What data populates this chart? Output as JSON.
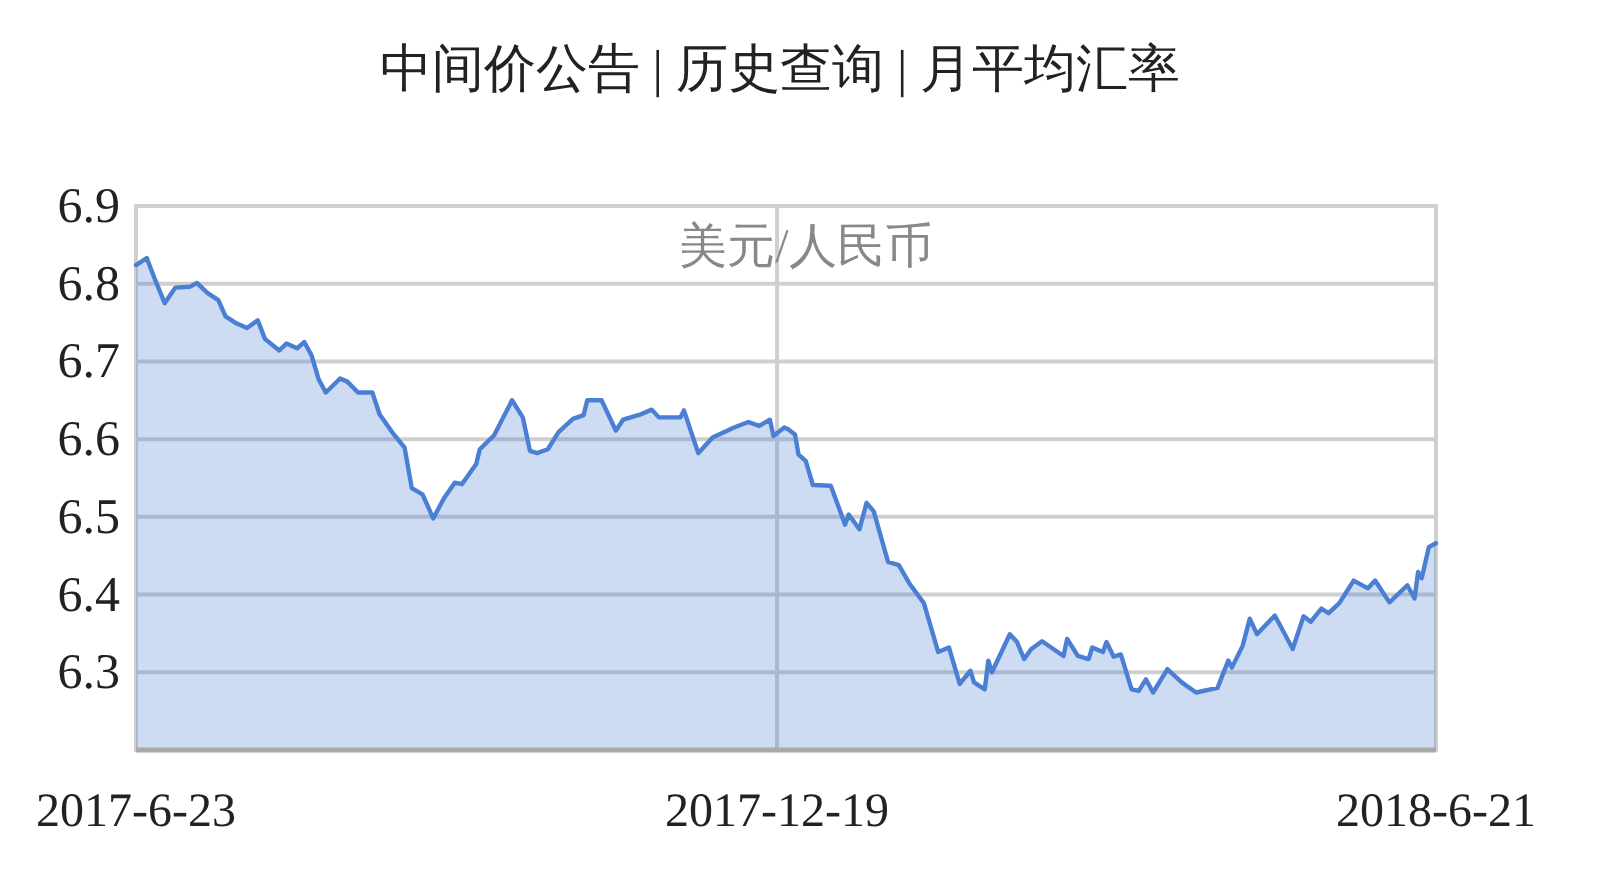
{
  "chart_data": {
    "type": "area",
    "title": "中间价公告 | 历史查询 | 月平均汇率",
    "subtitle": "美元/人民币",
    "xlim": [
      "2017-06-23",
      "2018-06-21"
    ],
    "xticks": [
      {
        "value": "2017-06-23",
        "label": "2017-6-23"
      },
      {
        "value": "2017-12-19",
        "label": "2017-12-19"
      },
      {
        "value": "2018-06-21",
        "label": "2018-6-21"
      }
    ],
    "ylim": [
      6.2,
      6.9
    ],
    "yticks": [
      6.3,
      6.4,
      6.5,
      6.6,
      6.7,
      6.8,
      6.9
    ],
    "grid": true,
    "series": [
      {
        "color": "#4a7fd4",
        "x": [
          "2017-06-23",
          "2017-06-26",
          "2017-06-28",
          "2017-07-01",
          "2017-07-04",
          "2017-07-08",
          "2017-07-10",
          "2017-07-13",
          "2017-07-16",
          "2017-07-18",
          "2017-07-21",
          "2017-07-24",
          "2017-07-27",
          "2017-07-29",
          "2017-08-02",
          "2017-08-04",
          "2017-08-07",
          "2017-08-09",
          "2017-08-11",
          "2017-08-13",
          "2017-08-15",
          "2017-08-19",
          "2017-08-21",
          "2017-08-24",
          "2017-08-28",
          "2017-08-30",
          "2017-09-03",
          "2017-09-06",
          "2017-09-08",
          "2017-09-11",
          "2017-09-14",
          "2017-09-17",
          "2017-09-20",
          "2017-09-22",
          "2017-09-26",
          "2017-09-27",
          "2017-10-01",
          "2017-10-06",
          "2017-10-09",
          "2017-10-11",
          "2017-10-13",
          "2017-10-16",
          "2017-10-19",
          "2017-10-23",
          "2017-10-26",
          "2017-10-27",
          "2017-10-31",
          "2017-11-04",
          "2017-11-06",
          "2017-11-11",
          "2017-11-14",
          "2017-11-16",
          "2017-11-22",
          "2017-11-23",
          "2017-11-27",
          "2017-12-01",
          "2017-12-07",
          "2017-12-11",
          "2017-12-14",
          "2017-12-17",
          "2017-12-18",
          "2017-12-21",
          "2017-12-22",
          "2017-12-24",
          "2017-12-25",
          "2017-12-27",
          "2017-12-29",
          "2018-01-03",
          "2018-01-07",
          "2018-01-08",
          "2018-01-11",
          "2018-01-13",
          "2018-01-15",
          "2018-01-19",
          "2018-01-22",
          "2018-01-25",
          "2018-01-29",
          "2018-02-02",
          "2018-02-05",
          "2018-02-08",
          "2018-02-11",
          "2018-02-12",
          "2018-02-15",
          "2018-02-16",
          "2018-02-17",
          "2018-02-22",
          "2018-02-24",
          "2018-02-26",
          "2018-02-28",
          "2018-03-03",
          "2018-03-09",
          "2018-03-10",
          "2018-03-13",
          "2018-03-16",
          "2018-03-17",
          "2018-03-20",
          "2018-03-21",
          "2018-03-23",
          "2018-03-25",
          "2018-03-28",
          "2018-03-30",
          "2018-04-01",
          "2018-04-03",
          "2018-04-07",
          "2018-04-11",
          "2018-04-15",
          "2018-04-21",
          "2018-04-24",
          "2018-04-25",
          "2018-04-28",
          "2018-04-30",
          "2018-05-02",
          "2018-05-07",
          "2018-05-12",
          "2018-05-15",
          "2018-05-17",
          "2018-05-20",
          "2018-05-22",
          "2018-05-25",
          "2018-05-29",
          "2018-06-02",
          "2018-06-04",
          "2018-06-08",
          "2018-06-13",
          "2018-06-15",
          "2018-06-16",
          "2018-06-17",
          "2018-06-19",
          "2018-06-21"
        ],
        "values": [
          6.824,
          6.833,
          6.809,
          6.775,
          6.795,
          6.796,
          6.801,
          6.788,
          6.779,
          6.758,
          6.749,
          6.743,
          6.753,
          6.729,
          6.714,
          6.723,
          6.717,
          6.725,
          6.708,
          6.677,
          6.66,
          6.678,
          6.674,
          6.66,
          6.66,
          6.632,
          6.606,
          6.589,
          6.537,
          6.529,
          6.498,
          6.524,
          6.544,
          6.542,
          6.568,
          6.587,
          6.605,
          6.65,
          6.628,
          6.585,
          6.582,
          6.587,
          6.609,
          6.626,
          6.631,
          6.65,
          6.65,
          6.611,
          6.625,
          6.632,
          6.638,
          6.628,
          6.628,
          6.637,
          6.582,
          6.602,
          6.615,
          6.622,
          6.617,
          6.625,
          6.604,
          6.615,
          6.613,
          6.606,
          6.58,
          6.572,
          6.541,
          6.54,
          6.49,
          6.503,
          6.484,
          6.518,
          6.507,
          6.442,
          6.438,
          6.414,
          6.389,
          6.326,
          6.332,
          6.285,
          6.302,
          6.287,
          6.278,
          6.315,
          6.3,
          6.349,
          6.339,
          6.317,
          6.33,
          6.34,
          6.321,
          6.343,
          6.321,
          6.317,
          6.332,
          6.326,
          6.339,
          6.32,
          6.323,
          6.278,
          6.276,
          6.291,
          6.274,
          6.304,
          6.287,
          6.274,
          6.28,
          6.315,
          6.306,
          6.334,
          6.369,
          6.349,
          6.373,
          6.33,
          6.372,
          6.365,
          6.382,
          6.376,
          6.389,
          6.418,
          6.408,
          6.418,
          6.39,
          6.412,
          6.395,
          6.429,
          6.421,
          6.461,
          6.466
        ]
      }
    ]
  }
}
